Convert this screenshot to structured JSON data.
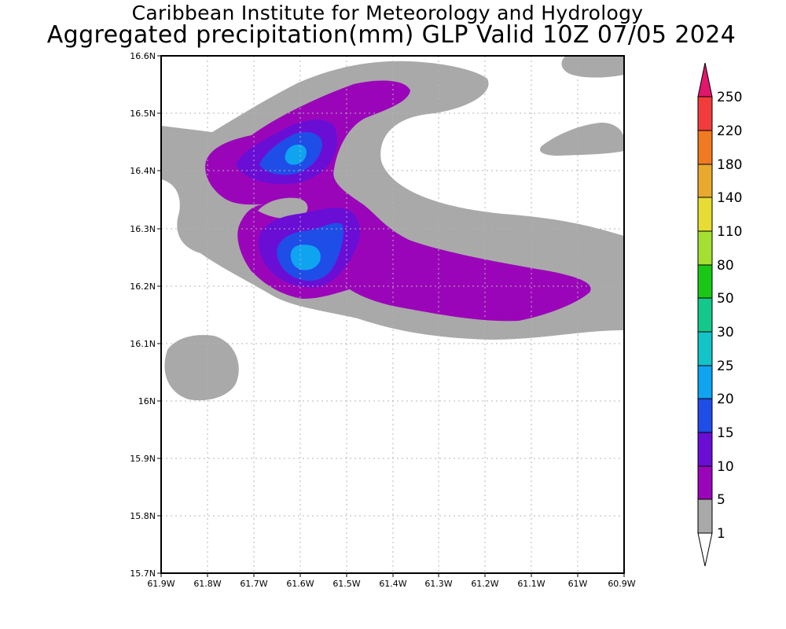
{
  "title": {
    "line1": "Caribbean Institute for Meteorology and Hydrology",
    "line2": "Aggregated precipitation(mm) GLP Valid 10Z 07/05 2024"
  },
  "map": {
    "lat_ticks": [
      "16.6N",
      "16.5N",
      "16.4N",
      "16.3N",
      "16.2N",
      "16.1N",
      "16N",
      "15.9N",
      "15.8N",
      "15.7N"
    ],
    "lon_ticks": [
      "61.9W",
      "61.8W",
      "61.7W",
      "61.6W",
      "61.5W",
      "61.4W",
      "61.3W",
      "61.2W",
      "61.1W",
      "61W",
      "60.9W"
    ],
    "lat_range": [
      15.7,
      16.6
    ],
    "lon_range": [
      -61.9,
      -60.9
    ],
    "grid": true,
    "precip_levels": [
      {
        "label": "1-5 mm",
        "color": "#a9a9a9"
      },
      {
        "label": "5-10 mm",
        "color": "#9b05b9"
      },
      {
        "label": "10-15 mm",
        "color": "#6a0ed6"
      },
      {
        "label": "15-20 mm",
        "color": "#1f4de8"
      },
      {
        "label": "20-25 mm",
        "color": "#0fa4f0"
      }
    ]
  },
  "colorbar": {
    "labels": [
      "250",
      "220",
      "180",
      "140",
      "110",
      "80",
      "50",
      "30",
      "25",
      "20",
      "15",
      "10",
      "5",
      "1"
    ],
    "colors": [
      "#e0176b",
      "#f23c3c",
      "#f07a22",
      "#e8a92c",
      "#e6dc33",
      "#a3e032",
      "#19c814",
      "#12c88a",
      "#12c3c8",
      "#0fa4f0",
      "#1f4de8",
      "#6a0ed6",
      "#9b05b9",
      "#a9a9a9",
      "#ffffff"
    ]
  }
}
